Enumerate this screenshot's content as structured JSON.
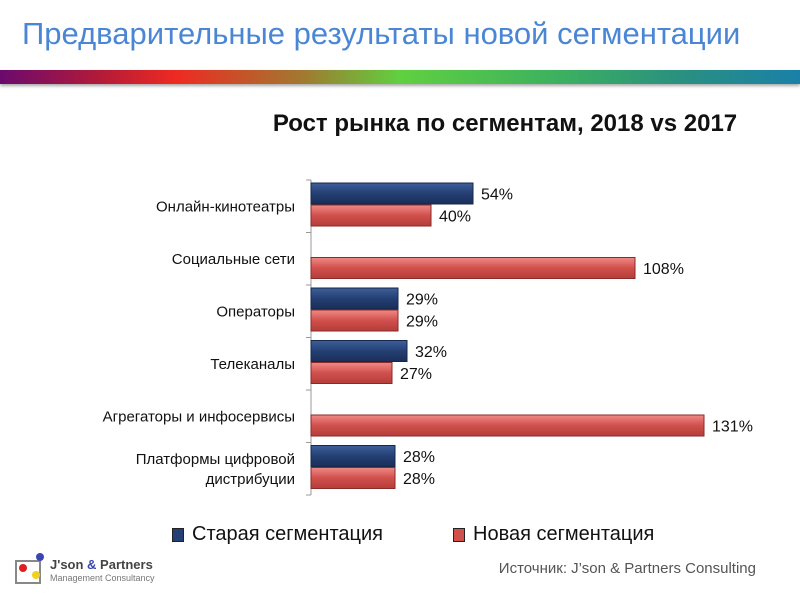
{
  "slide_title": "Предварительные результаты новой сегментации",
  "logo": {
    "name": "J'son & Partners",
    "subtitle": "Management Consultancy"
  },
  "source": "Источник: J’son & Partners Consulting",
  "colors": {
    "old": "#243f73",
    "new": "#d0504c",
    "title": "#4a86d4"
  },
  "chart_data": {
    "type": "bar",
    "orientation": "horizontal",
    "title": "Рост рынка по сегментам, 2018 vs 2017",
    "categories": [
      "Онлайн-кинотеатры",
      "Социальные сети",
      "Операторы",
      "Телеканалы",
      "Агрегаторы и инфосервисы",
      "Платформы цифровой дистрибуции"
    ],
    "series": [
      {
        "name": "Старая сегментация",
        "values": [
          54,
          null,
          29,
          32,
          null,
          28
        ],
        "labels": [
          "54%",
          null,
          "29%",
          "32%",
          null,
          "28%"
        ]
      },
      {
        "name": "Новая сегментация",
        "values": [
          40,
          108,
          29,
          27,
          131,
          28
        ],
        "labels": [
          "40%",
          "108%",
          "29%",
          "27%",
          "131%",
          "28%"
        ]
      }
    ],
    "unit": "%",
    "grid": false,
    "legend": "bottom"
  }
}
